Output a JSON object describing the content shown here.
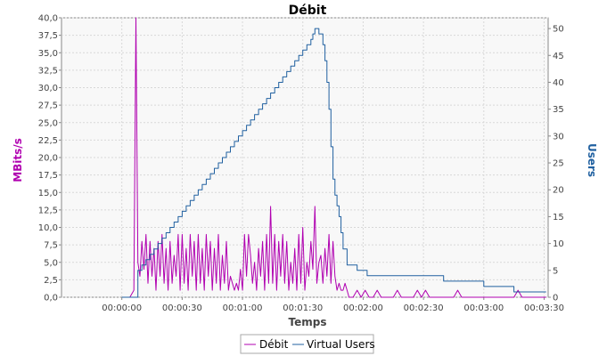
{
  "chart_data": {
    "type": "line",
    "title": "Débit",
    "xlabel": "Temps",
    "ylabel_left": "MBits/s",
    "ylabel_right": "Users",
    "x_unit": "seconds",
    "xlim": [
      -30,
      212
    ],
    "ylim_left": [
      0,
      40
    ],
    "ylim_right": [
      0,
      52
    ],
    "x_ticks": [
      {
        "t": 0,
        "label": "00:00:00"
      },
      {
        "t": 30,
        "label": "00:00:30"
      },
      {
        "t": 60,
        "label": "00:01:00"
      },
      {
        "t": 90,
        "label": "00:01:30"
      },
      {
        "t": 120,
        "label": "00:02:00"
      },
      {
        "t": 150,
        "label": "00:02:30"
      },
      {
        "t": 180,
        "label": "00:03:00"
      },
      {
        "t": 210,
        "label": "00:03:30"
      }
    ],
    "y_left_ticks": [
      "0,0",
      "2,5",
      "5,0",
      "7,5",
      "10,0",
      "12,5",
      "15,0",
      "17,5",
      "20,0",
      "22,5",
      "25,0",
      "27,5",
      "30,0",
      "32,5",
      "35,0",
      "37,5",
      "40,0"
    ],
    "y_right_ticks": [
      "0",
      "5",
      "10",
      "15",
      "20",
      "25",
      "30",
      "35",
      "40",
      "45",
      "50"
    ],
    "grid": true,
    "legend_position": "bottom",
    "series": [
      {
        "name": "Débit",
        "axis": "left",
        "color": "#b000b0",
        "x": [
          4,
          6,
          7,
          8,
          9,
          10,
          11,
          12,
          13,
          14,
          15,
          16,
          17,
          18,
          19,
          20,
          21,
          22,
          23,
          24,
          25,
          26,
          27,
          28,
          29,
          30,
          31,
          32,
          33,
          34,
          35,
          36,
          37,
          38,
          39,
          40,
          41,
          42,
          43,
          44,
          45,
          46,
          47,
          48,
          49,
          50,
          51,
          52,
          53,
          54,
          55,
          56,
          57,
          58,
          59,
          60,
          61,
          62,
          63,
          64,
          65,
          66,
          67,
          68,
          69,
          70,
          71,
          72,
          73,
          74,
          75,
          76,
          77,
          78,
          79,
          80,
          81,
          82,
          83,
          84,
          85,
          86,
          87,
          88,
          89,
          90,
          91,
          92,
          93,
          94,
          95,
          96,
          97,
          98,
          99,
          100,
          101,
          102,
          103,
          104,
          105,
          106,
          107,
          108,
          109,
          110,
          111,
          112,
          113,
          115,
          117,
          119,
          121,
          123,
          125,
          127,
          129,
          131,
          133,
          135,
          137,
          139,
          141,
          143,
          145,
          147,
          149,
          151,
          153,
          155,
          157,
          159,
          161,
          163,
          165,
          167,
          169,
          171,
          173,
          175,
          177,
          179,
          181,
          183,
          185,
          187,
          189,
          191,
          193,
          195,
          197,
          199,
          201,
          203,
          205,
          207,
          209,
          211
        ],
        "values": [
          0,
          1,
          40,
          5,
          3,
          8,
          4,
          9,
          2,
          8,
          3,
          7,
          1,
          8,
          3,
          9,
          2,
          7,
          1,
          8,
          2,
          6,
          3,
          9,
          1,
          9,
          2,
          7,
          1,
          9,
          3,
          8,
          1,
          9,
          2,
          7,
          1,
          9,
          3,
          8,
          1,
          7,
          2,
          9,
          1,
          6,
          2,
          8,
          1,
          3,
          2,
          1,
          2,
          1,
          4,
          1,
          9,
          3,
          9,
          6,
          2,
          5,
          1,
          7,
          3,
          8,
          1,
          9,
          2,
          13,
          2,
          9,
          1,
          8,
          3,
          9,
          2,
          8,
          1,
          5,
          2,
          7,
          1,
          9,
          2,
          10,
          1,
          5,
          3,
          8,
          4,
          13,
          2,
          5,
          6,
          2,
          7,
          3,
          9,
          2,
          8,
          3,
          1,
          2,
          1,
          1,
          2,
          1,
          0,
          0,
          1,
          0,
          1,
          0,
          0,
          1,
          0,
          0,
          0,
          0,
          1,
          0,
          0,
          0,
          0,
          1,
          0,
          1,
          0,
          0,
          0,
          0,
          0,
          0,
          0,
          1,
          0,
          0,
          0,
          0,
          0,
          0,
          0,
          0,
          0,
          0,
          0,
          0,
          0,
          0,
          1,
          0,
          0,
          0,
          0,
          0,
          0,
          0
        ]
      },
      {
        "name": "Virtual Users",
        "axis": "right",
        "color": "#2060a0",
        "step": true,
        "x": [
          0,
          8,
          10,
          12,
          14,
          16,
          18,
          20,
          22,
          24,
          26,
          28,
          30,
          32,
          34,
          36,
          38,
          40,
          42,
          44,
          46,
          48,
          50,
          52,
          54,
          56,
          58,
          60,
          62,
          64,
          66,
          68,
          70,
          72,
          74,
          76,
          78,
          80,
          82,
          84,
          86,
          88,
          90,
          92,
          94,
          95,
          96,
          98,
          100,
          101,
          102,
          103,
          104,
          105,
          106,
          107,
          108,
          109,
          110,
          112,
          115,
          117,
          119,
          122,
          130,
          140,
          160,
          180,
          193,
          195,
          205,
          211
        ],
        "values": [
          0,
          5,
          6,
          7,
          8,
          9,
          10,
          11,
          12,
          13,
          14,
          15,
          16,
          17,
          18,
          19,
          20,
          21,
          22,
          23,
          24,
          25,
          26,
          27,
          28,
          29,
          30,
          31,
          32,
          33,
          34,
          35,
          36,
          37,
          38,
          39,
          40,
          41,
          42,
          43,
          44,
          45,
          46,
          47,
          48,
          49,
          50,
          49,
          47,
          44,
          40,
          35,
          28,
          22,
          19,
          17,
          15,
          12,
          9,
          6,
          6,
          5,
          5,
          4,
          4,
          4,
          3,
          2,
          2,
          1,
          1,
          1
        ]
      }
    ]
  }
}
